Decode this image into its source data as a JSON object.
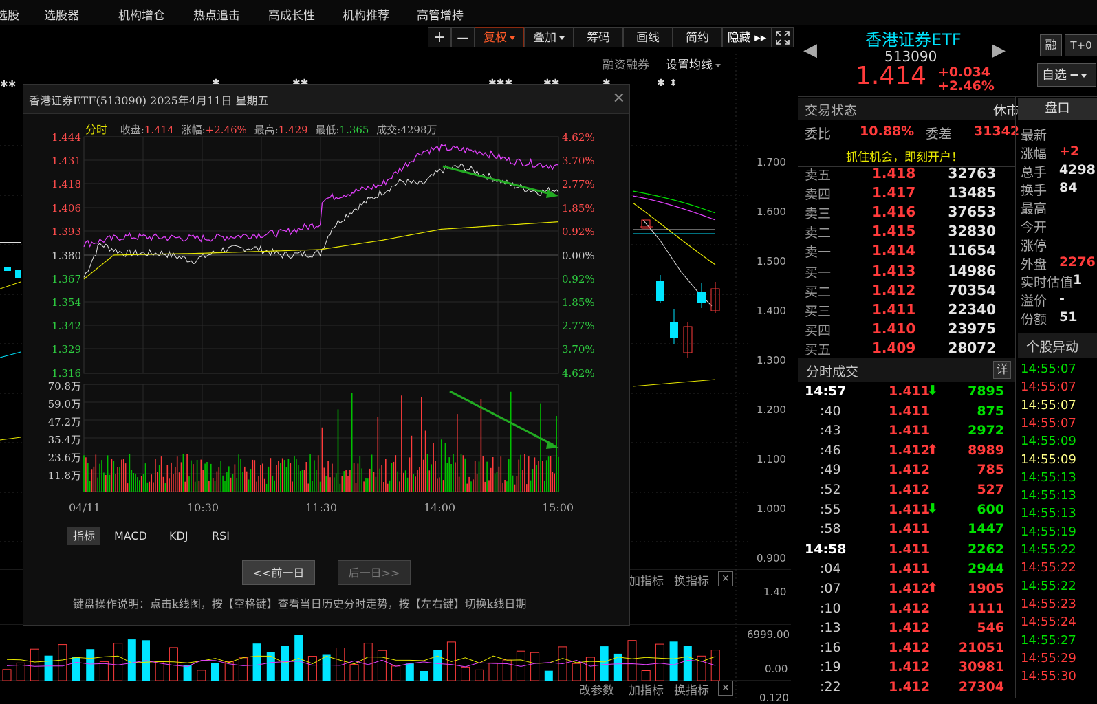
{
  "nav": [
    "选股",
    "选股器",
    "机构增仓",
    "热点追击",
    "高成长性",
    "机构推荐",
    "高管增持"
  ],
  "toolbar": {
    "plus": "+",
    "minus": "—",
    "fuquan": "复权",
    "diejia": "叠加",
    "chouma": "筹码",
    "huaxian": "画线",
    "jianyue": "简约",
    "yincang": "隐藏",
    "rzrq": "融资融券",
    "junxian": "设置均线"
  },
  "main_axis": {
    "ticks": [
      "1.700",
      "1.600",
      "1.500",
      "1.400",
      "1.300",
      "1.200",
      "1.100",
      "1.000",
      "0.900"
    ],
    "sub_ticks": [
      "1.40"
    ],
    "vol_ticks": [
      "6999.00",
      "0.00"
    ],
    "bottom_tick": "0.120"
  },
  "sub_labels": {
    "jiazhibiao": "加指标",
    "huanzhibiao": "换指标",
    "gaicanshu": "改参数",
    "jiazhibiao2": "加指标",
    "huanzhibiao2": "换指标"
  },
  "popup": {
    "title": "香港证券ETF(513090)  2025年4月11日  星期五",
    "info": {
      "fenshi": "分时",
      "shoupan_l": "收盘:",
      "shoupan": "1.414",
      "zhangfu_l": "涨幅:",
      "zhangfu": "+2.46%",
      "zuigao_l": "最高:",
      "zuigao": "1.429",
      "zuidi_l": "最低:",
      "zuidi": "1.365",
      "chengjiao": "成交:4298万"
    },
    "y_left": [
      "1.444",
      "1.431",
      "1.418",
      "1.406",
      "1.393",
      "1.380",
      "1.367",
      "1.354",
      "1.342",
      "1.329",
      "1.316"
    ],
    "y_right": [
      "4.62%",
      "3.70%",
      "2.77%",
      "1.85%",
      "0.92%",
      "0.00%",
      "0.92%",
      "1.85%",
      "2.77%",
      "3.70%",
      "4.62%"
    ],
    "vol_left": [
      "70.8万",
      "59.0万",
      "47.2万",
      "35.4万",
      "23.6万",
      "11.8万"
    ],
    "x_ticks": [
      "04/11",
      "10:30",
      "11:30",
      "14:00",
      "15:00"
    ],
    "tabs": [
      "指标",
      "MACD",
      "KDJ",
      "RSI"
    ],
    "prev": "<<前一日",
    "next": "后一日>>",
    "note": "键盘操作说明：点击k线图，按【空格键】查看当日历史分时走势，按【左右键】切换k线日期"
  },
  "stock": {
    "name": "香港证券ETF",
    "code": "513090",
    "price": "1.414",
    "change": "+0.034",
    "pct": "+2.46%",
    "rong": "融",
    "t0": "T+0",
    "zixuan": "自选"
  },
  "status": {
    "label": "交易状态",
    "value": "休市",
    "weibi_l": "委比",
    "weibi": "10.88%",
    "weicha_l": "委差",
    "weicha": "31342",
    "ad": "抓住机会，即刻开户！",
    "pankou": "盘口"
  },
  "orderbook": {
    "asks": [
      {
        "label": "卖五",
        "price": "1.418",
        "vol": "32763"
      },
      {
        "label": "卖四",
        "price": "1.417",
        "vol": "13485"
      },
      {
        "label": "卖三",
        "price": "1.416",
        "vol": "37653"
      },
      {
        "label": "卖二",
        "price": "1.415",
        "vol": "32830"
      },
      {
        "label": "卖一",
        "price": "1.414",
        "vol": "11654"
      }
    ],
    "bids": [
      {
        "label": "买一",
        "price": "1.413",
        "vol": "14986"
      },
      {
        "label": "买二",
        "price": "1.412",
        "vol": "70354"
      },
      {
        "label": "买三",
        "price": "1.411",
        "vol": "22340"
      },
      {
        "label": "买四",
        "price": "1.410",
        "vol": "23975"
      },
      {
        "label": "买五",
        "price": "1.409",
        "vol": "28072"
      }
    ]
  },
  "pankou_list": [
    {
      "label": "最新",
      "value": ""
    },
    {
      "label": "涨幅",
      "value": "+2"
    },
    {
      "label": "总手",
      "value": "4298"
    },
    {
      "label": "换手",
      "value": "84"
    },
    {
      "label": "最高",
      "value": ""
    },
    {
      "label": "今开",
      "value": ""
    },
    {
      "label": "涨停",
      "value": ""
    },
    {
      "label": "外盘",
      "value": "2276"
    },
    {
      "label": "实时估值",
      "value": "1"
    },
    {
      "label": "溢价",
      "value": "-"
    },
    {
      "label": "份额",
      "value": "51"
    }
  ],
  "trades_title": "分时成交",
  "trades_detail": "详",
  "trades": [
    {
      "time": "14:57",
      "price": "1.411",
      "arrow": "down",
      "vol": "7895"
    },
    {
      "time": ":40",
      "price": "1.411",
      "arrow": "",
      "vol": "875"
    },
    {
      "time": ":43",
      "price": "1.411",
      "arrow": "",
      "vol": "2972"
    },
    {
      "time": ":46",
      "price": "1.412",
      "arrow": "up",
      "vol": "8989"
    },
    {
      "time": ":49",
      "price": "1.412",
      "arrow": "",
      "vol": "785"
    },
    {
      "time": ":52",
      "price": "1.412",
      "arrow": "",
      "vol": "527"
    },
    {
      "time": ":55",
      "price": "1.411",
      "arrow": "down",
      "vol": "600"
    },
    {
      "time": ":58",
      "price": "1.411",
      "arrow": "",
      "vol": "1447"
    },
    {
      "time": "14:58",
      "price": "1.411",
      "arrow": "",
      "vol": "2262"
    },
    {
      "time": ":04",
      "price": "1.411",
      "arrow": "",
      "vol": "2944"
    },
    {
      "time": ":07",
      "price": "1.412",
      "arrow": "up",
      "vol": "1905"
    },
    {
      "time": ":10",
      "price": "1.412",
      "arrow": "",
      "vol": "1111"
    },
    {
      "time": ":13",
      "price": "1.412",
      "arrow": "",
      "vol": "546"
    },
    {
      "time": ":16",
      "price": "1.412",
      "arrow": "",
      "vol": "21051"
    },
    {
      "time": ":19",
      "price": "1.412",
      "arrow": "",
      "vol": "30981"
    },
    {
      "time": ":22",
      "price": "1.412",
      "arrow": "",
      "vol": "27304"
    }
  ],
  "gegu_title": "个股异动",
  "gegu_times": [
    {
      "t": "14:55:07",
      "c": "green"
    },
    {
      "t": "14:55:07",
      "c": "red"
    },
    {
      "t": "14:55:07",
      "c": "yellow"
    },
    {
      "t": "14:55:07",
      "c": "red"
    },
    {
      "t": "14:55:09",
      "c": "green"
    },
    {
      "t": "14:55:09",
      "c": "yellow"
    },
    {
      "t": "14:55:13",
      "c": "green"
    },
    {
      "t": "14:55:13",
      "c": "green"
    },
    {
      "t": "14:55:13",
      "c": "green"
    },
    {
      "t": "14:55:19",
      "c": "green"
    },
    {
      "t": "14:55:22",
      "c": "green"
    },
    {
      "t": "14:55:22",
      "c": "red"
    },
    {
      "t": "14:55:22",
      "c": "green"
    },
    {
      "t": "14:55:23",
      "c": "red"
    },
    {
      "t": "14:55:24",
      "c": "red"
    },
    {
      "t": "14:55:27",
      "c": "green"
    },
    {
      "t": "14:55:29",
      "c": "red"
    },
    {
      "t": "14:55:30",
      "c": "red"
    }
  ],
  "colors": {
    "red": "#ff3b3b",
    "green": "#00e000",
    "magenta": "#e040fb",
    "yellow": "#e6e600",
    "cyan": "#00e5ff",
    "arrow": "#22aa22"
  }
}
